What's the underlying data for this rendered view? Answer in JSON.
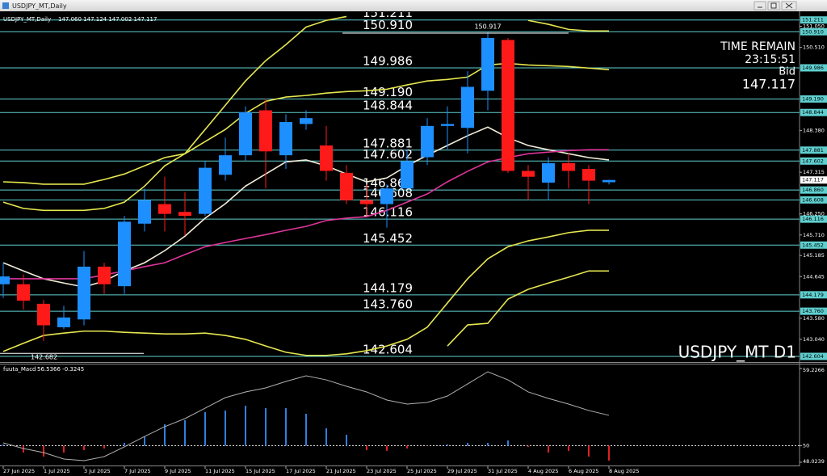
{
  "window_title": "USDJPY_MT,Daily",
  "chart_data": [
    {
      "type": "candlestick",
      "title": "USDJPY_MT,Daily",
      "readout": "147.060 147.124 147.002 147.117",
      "categories": [
        "27 Jun 2025",
        null,
        "1 Jul 2025",
        null,
        "3 Jul 2025",
        null,
        "7 Jul 2025",
        null,
        "9 Jul 2025",
        null,
        "11 Jul 2025",
        null,
        "15 Jul 2025",
        null,
        "17 Jul 2025",
        null,
        "21 Jul 2025",
        null,
        "23 Jul 2025",
        null,
        "25 Jul 2025",
        null,
        "29 Jul 2025",
        null,
        "31 Jul 2025",
        null,
        "4 Aug 2025",
        null,
        "6 Aug 2025",
        null,
        "8 Aug 2025"
      ],
      "open": [
        144.45,
        144.45,
        143.95,
        143.35,
        143.55,
        144.9,
        144.4,
        146.0,
        146.5,
        146.3,
        146.25,
        147.25,
        147.75,
        148.9,
        147.75,
        148.55,
        148.0,
        147.3,
        146.6,
        146.5,
        146.9,
        147.7,
        148.5,
        148.45,
        149.4,
        150.7,
        147.35,
        147.05,
        147.55,
        147.4,
        147.06
      ],
      "high": [
        145.0,
        144.7,
        144.05,
        143.9,
        145.3,
        145.0,
        146.2,
        146.9,
        147.2,
        146.8,
        147.6,
        148.2,
        149.0,
        149.2,
        148.8,
        148.9,
        148.5,
        147.5,
        147.0,
        147.0,
        147.9,
        148.7,
        149.0,
        149.9,
        150.917,
        150.75,
        147.5,
        147.7,
        147.8,
        147.5,
        147.124
      ],
      "low": [
        144.1,
        143.8,
        143.0,
        143.3,
        143.4,
        144.2,
        144.2,
        145.8,
        145.8,
        145.7,
        146.2,
        147.1,
        147.6,
        146.9,
        147.4,
        148.4,
        147.1,
        146.5,
        146.2,
        145.9,
        146.9,
        147.5,
        147.9,
        147.8,
        148.9,
        147.3,
        146.6,
        146.6,
        146.9,
        146.5,
        147.002
      ],
      "close": [
        144.65,
        144.03,
        143.4,
        143.6,
        144.9,
        144.45,
        146.05,
        146.6,
        146.25,
        146.2,
        147.43,
        147.75,
        148.85,
        147.85,
        148.6,
        148.7,
        147.35,
        146.6,
        146.5,
        146.9,
        147.6,
        148.5,
        148.55,
        149.5,
        150.75,
        147.35,
        147.2,
        147.55,
        147.35,
        147.1,
        147.117
      ],
      "up_color": "#1e8fff",
      "down_color": "#ff1a1a",
      "series": [
        {
          "color": "#f2ecd8",
          "values": [
            145.0,
            144.79,
            144.59,
            144.48,
            144.38,
            144.53,
            144.79,
            145.0,
            145.31,
            145.68,
            146.14,
            146.51,
            146.96,
            147.27,
            147.58,
            147.63,
            147.48,
            147.27,
            147.07,
            147.17,
            147.48,
            147.75,
            148.0,
            148.25,
            148.47,
            148.2,
            148.0,
            147.89,
            147.79,
            147.69,
            147.63
          ]
        },
        {
          "color": "#e0359a",
          "values": [
            144.59,
            144.59,
            144.59,
            144.59,
            144.59,
            144.69,
            144.79,
            144.9,
            145.0,
            145.21,
            145.41,
            145.52,
            145.62,
            145.72,
            145.83,
            145.93,
            146.08,
            146.14,
            146.18,
            146.34,
            146.55,
            146.76,
            147.07,
            147.34,
            147.58,
            147.69,
            147.79,
            147.83,
            147.87,
            147.89,
            147.89
          ]
        },
        {
          "color": "#e6e650",
          "values": [
            147.07,
            147.05,
            147.01,
            147.01,
            147.01,
            147.13,
            147.27,
            147.48,
            147.69,
            147.79,
            148.1,
            148.41,
            148.82,
            149.13,
            149.24,
            149.28,
            149.34,
            149.38,
            149.4,
            149.44,
            149.55,
            149.65,
            149.69,
            149.75,
            150.06,
            150.1,
            150.06,
            150.04,
            150.02,
            149.98,
            149.94
          ]
        },
        {
          "color": "#e6e650",
          "values": [
            142.73,
            142.94,
            143.14,
            143.2,
            143.25,
            143.25,
            143.22,
            143.2,
            143.18,
            143.18,
            143.2,
            143.14,
            143.04,
            142.87,
            142.71,
            142.63,
            142.63,
            142.67,
            142.75,
            142.87,
            143.04,
            143.35,
            143.97,
            144.59,
            145.1,
            145.41,
            145.56,
            145.66,
            145.77,
            145.83,
            145.83
          ]
        },
        {
          "color": "#e6e650",
          "values": [
            146.55,
            146.39,
            146.34,
            146.34,
            146.34,
            146.39,
            146.55,
            146.96,
            147.48,
            147.79,
            148.41,
            149.03,
            149.65,
            150.17,
            150.58,
            151.03,
            151.2,
            151.3,
            null,
            null,
            null,
            null,
            null,
            null,
            null,
            null,
            151.2,
            151.1,
            150.97,
            150.93,
            150.93
          ]
        },
        {
          "color": "#e6e650",
          "values": [
            null,
            null,
            null,
            null,
            null,
            null,
            null,
            null,
            null,
            null,
            null,
            null,
            null,
            null,
            null,
            null,
            null,
            null,
            null,
            null,
            null,
            null,
            142.87,
            143.41,
            143.45,
            144.07,
            144.32,
            144.48,
            144.63,
            144.79,
            144.79
          ]
        }
      ],
      "ylim": [
        142.48,
        151.35
      ],
      "yticks": [
        {
          "value": 151.05,
          "label": "151.050"
        },
        {
          "value": 150.51,
          "label": "150.510"
        },
        {
          "value": 148.38,
          "label": "148.380"
        },
        147.315,
        {
          "value": 146.25,
          "label": "146.250"
        },
        {
          "value": 145.71,
          "label": "145.710"
        },
        145.185,
        144.645,
        {
          "value": 143.58,
          "label": "143.580"
        },
        {
          "value": 143.04,
          "label": "143.040"
        }
      ],
      "levels": [
        151.211,
        {
          "value": 150.91,
          "label": "150.910"
        },
        149.986,
        {
          "value": 149.19,
          "label": "149.190"
        },
        148.844,
        147.881,
        147.602,
        {
          "value": 146.86,
          "label": "146.860"
        },
        146.608,
        146.116,
        145.452,
        144.179,
        {
          "value": 143.76,
          "label": "143.760"
        },
        142.604
      ],
      "level_color": "#5fd0d0",
      "high_marker": 150.917,
      "high_index": 24,
      "low_marker": 142.682,
      "time_remain_label": "TIME REMAIN",
      "time_remain": "23:15:51",
      "bid_label": "Bid",
      "bid": 147.117,
      "watermark": "USDJPY_MT D1"
    },
    {
      "type": "bar",
      "title": "fuuta_Macd",
      "readout": "56.5366 -0.3245",
      "values": [
        50.15,
        49.18,
        48.7,
        49.18,
        49.47,
        49.67,
        50.34,
        51.11,
        52.56,
        53.05,
        54.01,
        54.21,
        54.78,
        54.49,
        54.49,
        53.82,
        52.08,
        51.31,
        49.47,
        49.38,
        49.67,
        49.96,
        50.15,
        50.34,
        50.34,
        50.63,
        49.86,
        49.18,
        49.38,
        48.7,
        48.22
      ],
      "up_color": "#2f7fe0",
      "down_color": "#e02020",
      "line": {
        "color": "#b0b0b0",
        "values": [
          50.34,
          49.67,
          49.18,
          48.41,
          48.22,
          48.7,
          49.86,
          51.11,
          52.28,
          53.24,
          54.49,
          55.75,
          56.43,
          56.91,
          57.68,
          58.36,
          57.87,
          57.1,
          56.43,
          55.46,
          54.98,
          55.17,
          55.94,
          57.39,
          58.84,
          57.87,
          56.43,
          55.65,
          54.98,
          54.21,
          53.63
        ]
      },
      "baseline": 50,
      "ylim": [
        48.0239,
        59.2266
      ],
      "yticks": [
        59.2266,
        50,
        48.0239
      ]
    }
  ]
}
